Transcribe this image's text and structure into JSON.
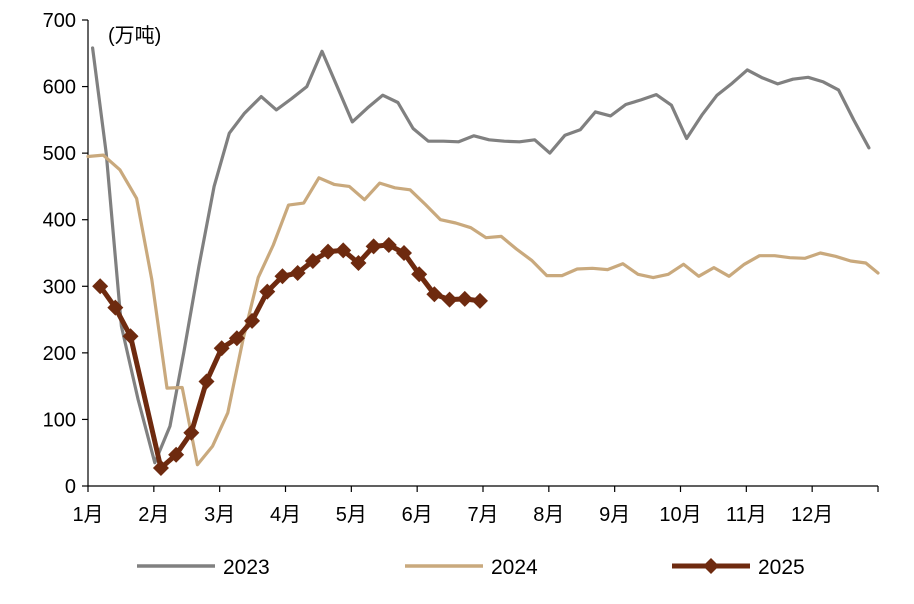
{
  "chart_data": {
    "type": "line",
    "title": "",
    "unit_label": "(万吨)",
    "xlabel": "",
    "ylabel": "",
    "ylim": [
      0,
      700
    ],
    "yticks": [
      0,
      100,
      200,
      300,
      400,
      500,
      600,
      700
    ],
    "xlim_weeks": [
      0,
      52
    ],
    "month_labels": [
      "1月",
      "2月",
      "3月",
      "4月",
      "5月",
      "6月",
      "7月",
      "8月",
      "9月",
      "10月",
      "11月",
      "12月"
    ],
    "grid": false,
    "legend_position": "bottom",
    "series": [
      {
        "name": "2023",
        "color": "#808080",
        "marker": "none",
        "points": [
          [
            0.3,
            658
          ],
          [
            1.2,
            500
          ],
          [
            2.2,
            240
          ],
          [
            3.3,
            130
          ],
          [
            4.4,
            35
          ],
          [
            5.4,
            90
          ],
          [
            6.3,
            200
          ],
          [
            7.3,
            330
          ],
          [
            8.3,
            450
          ],
          [
            9.3,
            530
          ],
          [
            10.3,
            560
          ],
          [
            11.4,
            585
          ],
          [
            12.4,
            565
          ],
          [
            13.4,
            582
          ],
          [
            14.4,
            600
          ],
          [
            15.4,
            653
          ],
          [
            16.4,
            600
          ],
          [
            17.4,
            547
          ],
          [
            18.4,
            568
          ],
          [
            19.4,
            587
          ],
          [
            20.4,
            576
          ],
          [
            21.4,
            537
          ],
          [
            22.4,
            518
          ],
          [
            23.4,
            518
          ],
          [
            24.4,
            517
          ],
          [
            25.4,
            526
          ],
          [
            26.4,
            520
          ],
          [
            27.4,
            518
          ],
          [
            28.4,
            517
          ],
          [
            29.4,
            520
          ],
          [
            30.4,
            500
          ],
          [
            31.4,
            527
          ],
          [
            32.4,
            535
          ],
          [
            33.4,
            562
          ],
          [
            34.4,
            556
          ],
          [
            35.4,
            573
          ],
          [
            36.4,
            580
          ],
          [
            37.4,
            588
          ],
          [
            38.4,
            572
          ],
          [
            39.4,
            522
          ],
          [
            40.4,
            557
          ],
          [
            41.4,
            587
          ],
          [
            42.4,
            605
          ],
          [
            43.4,
            625
          ],
          [
            44.4,
            613
          ],
          [
            45.4,
            604
          ],
          [
            46.4,
            611
          ],
          [
            47.4,
            614
          ],
          [
            48.4,
            607
          ],
          [
            49.4,
            595
          ],
          [
            50.4,
            550
          ],
          [
            51.4,
            508
          ]
        ]
      },
      {
        "name": "2024",
        "color": "#C9A97D",
        "marker": "none",
        "points": [
          [
            0,
            495
          ],
          [
            1.0,
            497
          ],
          [
            2.1,
            475
          ],
          [
            3.2,
            432
          ],
          [
            4.2,
            310
          ],
          [
            5.2,
            147
          ],
          [
            6.2,
            148
          ],
          [
            7.2,
            32
          ],
          [
            8.2,
            60
          ],
          [
            9.2,
            110
          ],
          [
            10.2,
            220
          ],
          [
            11.2,
            313
          ],
          [
            12.2,
            362
          ],
          [
            13.2,
            422
          ],
          [
            14.2,
            425
          ],
          [
            15.2,
            463
          ],
          [
            16.2,
            453
          ],
          [
            17.2,
            450
          ],
          [
            18.2,
            430
          ],
          [
            19.2,
            455
          ],
          [
            20.2,
            448
          ],
          [
            21.2,
            445
          ],
          [
            22.2,
            423
          ],
          [
            23.2,
            400
          ],
          [
            24.2,
            395
          ],
          [
            25.2,
            388
          ],
          [
            26.2,
            373
          ],
          [
            27.2,
            375
          ],
          [
            28.2,
            356
          ],
          [
            29.2,
            339
          ],
          [
            30.2,
            316
          ],
          [
            31.2,
            316
          ],
          [
            32.2,
            326
          ],
          [
            33.2,
            327
          ],
          [
            34.2,
            325
          ],
          [
            35.2,
            334
          ],
          [
            36.2,
            318
          ],
          [
            37.2,
            313
          ],
          [
            38.2,
            318
          ],
          [
            39.2,
            333
          ],
          [
            40.2,
            315
          ],
          [
            41.2,
            328
          ],
          [
            42.2,
            315
          ],
          [
            43.2,
            333
          ],
          [
            44.2,
            346
          ],
          [
            45.2,
            346
          ],
          [
            46.2,
            343
          ],
          [
            47.2,
            342
          ],
          [
            48.2,
            350
          ],
          [
            49.2,
            345
          ],
          [
            50.2,
            338
          ],
          [
            51.2,
            335
          ],
          [
            52,
            320
          ]
        ]
      },
      {
        "name": "2025",
        "color": "#6E2A0F",
        "marker": "diamond",
        "points": [
          [
            0.8,
            300
          ],
          [
            1.8,
            268
          ],
          [
            2.8,
            225
          ],
          [
            4.8,
            27
          ],
          [
            5.8,
            47
          ],
          [
            6.8,
            80
          ],
          [
            7.8,
            157
          ],
          [
            8.8,
            207
          ],
          [
            9.8,
            222
          ],
          [
            10.8,
            248
          ],
          [
            11.8,
            292
          ],
          [
            12.8,
            315
          ],
          [
            13.8,
            320
          ],
          [
            14.8,
            338
          ],
          [
            15.8,
            352
          ],
          [
            16.8,
            354
          ],
          [
            17.8,
            335
          ],
          [
            18.8,
            360
          ],
          [
            19.8,
            362
          ],
          [
            20.8,
            350
          ],
          [
            21.8,
            318
          ],
          [
            22.8,
            288
          ],
          [
            23.8,
            280
          ],
          [
            24.8,
            281
          ],
          [
            25.8,
            278
          ]
        ]
      }
    ]
  }
}
